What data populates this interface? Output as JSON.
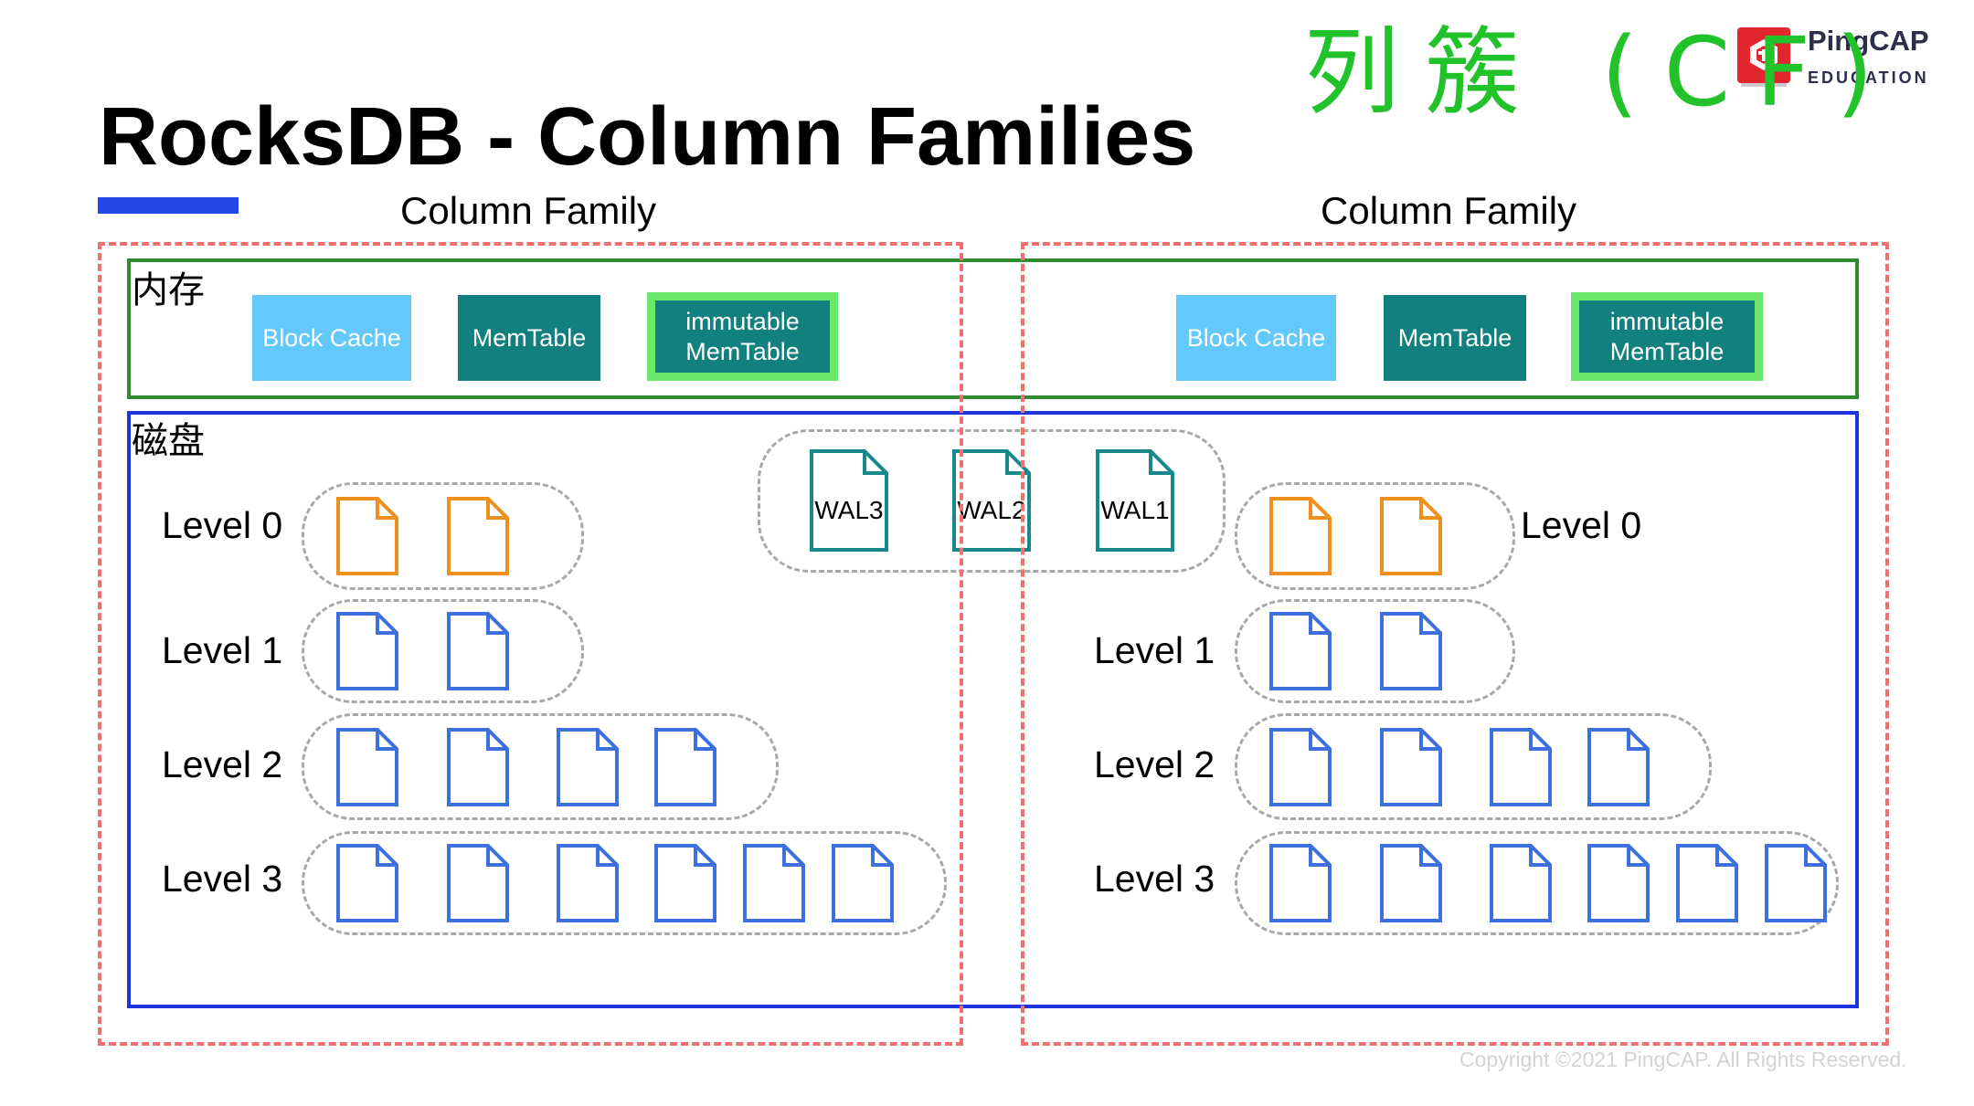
{
  "slide": {
    "title": "RocksDB - Column Families",
    "annotation": "列簇 (CF)",
    "logo": {
      "brand": "PingCAP",
      "tagline": "EDUCATION",
      "icon": "pingcap-logo-icon"
    },
    "copyright": "Copyright ©2021 PingCAP. All Rights Reserved."
  },
  "memory": {
    "label": "内存"
  },
  "disk": {
    "label": "磁盘"
  },
  "column_families": [
    {
      "label": "Column Family",
      "memory_components": {
        "block_cache": "Block Cache",
        "memtable": "MemTable",
        "immutable_memtable": "immutable MemTable"
      },
      "levels": [
        {
          "label": "Level 0",
          "file_count": 2,
          "file_icon": "sst-file-icon",
          "file_color": "#ef8f1e"
        },
        {
          "label": "Level 1",
          "file_count": 2,
          "file_icon": "sst-file-icon",
          "file_color": "#3d70dd"
        },
        {
          "label": "Level 2",
          "file_count": 4,
          "file_icon": "sst-file-icon",
          "file_color": "#3d70dd"
        },
        {
          "label": "Level 3",
          "file_count": 6,
          "file_icon": "sst-file-icon",
          "file_color": "#3d70dd"
        }
      ]
    },
    {
      "label": "Column Family",
      "memory_components": {
        "block_cache": "Block Cache",
        "memtable": "MemTable",
        "immutable_memtable": "immutable MemTable"
      },
      "levels": [
        {
          "label": "Level 0",
          "file_count": 2,
          "file_icon": "sst-file-icon",
          "file_color": "#ef8f1e"
        },
        {
          "label": "Level 1",
          "file_count": 2,
          "file_icon": "sst-file-icon",
          "file_color": "#3d70dd"
        },
        {
          "label": "Level 2",
          "file_count": 4,
          "file_icon": "sst-file-icon",
          "file_color": "#3d70dd"
        },
        {
          "label": "Level 3",
          "file_count": 6,
          "file_icon": "sst-file-icon",
          "file_color": "#3d70dd"
        }
      ]
    }
  ],
  "wal": {
    "files": [
      "WAL3",
      "WAL2",
      "WAL1"
    ],
    "icon": "wal-file-icon",
    "file_color": "#17898a"
  },
  "colors": {
    "title_bar": "#2447e6",
    "cf_border": "#ef7070",
    "memory_border": "#2e8b2e",
    "disk_border": "#1d33dd",
    "block_cache": "#63c8fa",
    "memtable": "#12807f",
    "immutable_rim": "#6ce86c",
    "annotation": "#22c22a",
    "logo": "#e1262d"
  }
}
